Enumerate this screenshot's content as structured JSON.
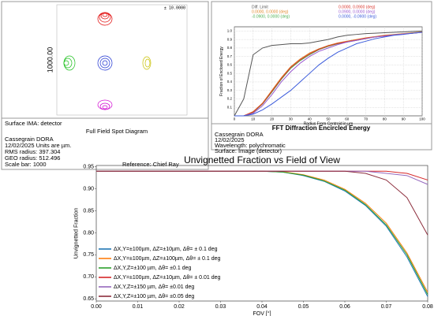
{
  "spot_diagram": {
    "scale_label": "± 10.0000",
    "axis_label": "1000.00",
    "surface": "Surface IMA: detector",
    "title": "Full Field Spot Diagram",
    "lines": [
      "Cassegrain DORA",
      "12/02/2025    Units are µm.",
      "RMS radius:  397.304",
      "GEO radius:  512.496",
      "Scale bar: 1000"
    ],
    "reference": "Reference: Chief Ray"
  },
  "encircled_energy_info": {
    "lines": [
      "Cassegrain DORA",
      "12/02/2025",
      "Wavelength: polychromatic",
      "Surface: Image (detector)"
    ]
  },
  "chart_data": [
    {
      "type": "line",
      "title": "FFT Diffraction Encircled Energy",
      "x_label": "Radius From Centroid in µm",
      "y_label": "Fraction of Enclosed Energy",
      "x": [
        0,
        5,
        10,
        15,
        20,
        25,
        30,
        35,
        40,
        45,
        50,
        55,
        60,
        65,
        70,
        75,
        80,
        85,
        90,
        95,
        100
      ],
      "xlim": [
        0,
        100
      ],
      "xticks": [
        0,
        10,
        20,
        30,
        40,
        50,
        60,
        70,
        80,
        90,
        100
      ],
      "ylim": [
        0,
        1.05
      ],
      "yticks": [
        {
          "value": 0.1,
          "label": "0.1"
        },
        {
          "value": 0.2,
          "label": "0.2"
        },
        {
          "value": 0.3,
          "label": "0.3"
        },
        {
          "value": 0.4,
          "label": "0.4"
        },
        {
          "value": 0.5,
          "label": "0.5"
        },
        {
          "value": 0.6,
          "label": "0.6"
        },
        {
          "value": 0.7,
          "label": "0.7"
        },
        {
          "value": 0.8,
          "label": "0.8"
        },
        {
          "value": 0.9,
          "label": "0.9"
        },
        {
          "value": 1.0,
          "label": "1.0"
        }
      ],
      "grid": true,
      "legend": "top",
      "series": [
        {
          "name": "Diff. Limit",
          "color": "#555555",
          "values": [
            0,
            0.2,
            0.72,
            0.8,
            0.83,
            0.84,
            0.85,
            0.85,
            0.86,
            0.88,
            0.9,
            0.93,
            0.95,
            0.96,
            0.97,
            0.975,
            0.98,
            0.985,
            0.99,
            0.995,
            1.0
          ]
        },
        {
          "name": "0.0000, 0.0000 (deg)",
          "color": "#e08a2c",
          "values": [
            0,
            0,
            0.05,
            0.15,
            0.3,
            0.45,
            0.58,
            0.67,
            0.74,
            0.79,
            0.83,
            0.86,
            0.88,
            0.9,
            0.92,
            0.935,
            0.95,
            0.96,
            0.97,
            0.98,
            0.99
          ]
        },
        {
          "name": "-0.0900, 0.0000 (deg)",
          "color": "#4caf50",
          "values": [
            0,
            0,
            0.04,
            0.14,
            0.28,
            0.43,
            0.56,
            0.65,
            0.72,
            0.78,
            0.82,
            0.85,
            0.87,
            0.89,
            0.91,
            0.93,
            0.945,
            0.955,
            0.965,
            0.975,
            0.985
          ]
        },
        {
          "name": "0.0000, 0.0900 (deg)",
          "color": "#d9342b",
          "values": [
            0,
            0,
            0.045,
            0.145,
            0.29,
            0.44,
            0.57,
            0.66,
            0.73,
            0.785,
            0.825,
            0.855,
            0.875,
            0.895,
            0.915,
            0.93,
            0.945,
            0.955,
            0.965,
            0.975,
            0.985
          ]
        },
        {
          "name": "0.0900, 0.0000 (deg)",
          "color": "#9b59d0",
          "values": [
            0,
            0,
            0.03,
            0.12,
            0.25,
            0.4,
            0.52,
            0.62,
            0.7,
            0.76,
            0.8,
            0.84,
            0.87,
            0.89,
            0.91,
            0.93,
            0.94,
            0.955,
            0.965,
            0.975,
            0.985
          ]
        },
        {
          "name": "0.0000, -0.0900 (deg)",
          "color": "#3b5bdb",
          "values": [
            0,
            0,
            0.02,
            0.07,
            0.14,
            0.22,
            0.3,
            0.4,
            0.5,
            0.6,
            0.68,
            0.75,
            0.8,
            0.85,
            0.88,
            0.91,
            0.93,
            0.95,
            0.96,
            0.975,
            0.985
          ]
        }
      ]
    },
    {
      "type": "line",
      "title": "Unvignetted Fraction vs Field of View",
      "x_label": "FOV [°]",
      "y_label": "Unvignetted Fraction",
      "x": [
        0,
        0.005,
        0.01,
        0.015,
        0.02,
        0.025,
        0.03,
        0.035,
        0.04,
        0.045,
        0.05,
        0.055,
        0.06,
        0.065,
        0.07,
        0.075,
        0.08
      ],
      "xlim": [
        0,
        0.08
      ],
      "xticks": [
        {
          "value": 0,
          "label": "0.00"
        },
        {
          "value": 0.01,
          "label": "0.01"
        },
        {
          "value": 0.02,
          "label": "0.02"
        },
        {
          "value": 0.03,
          "label": "0.03"
        },
        {
          "value": 0.04,
          "label": "0.04"
        },
        {
          "value": 0.05,
          "label": "0.05"
        },
        {
          "value": 0.06,
          "label": "0.06"
        },
        {
          "value": 0.07,
          "label": "0.07"
        },
        {
          "value": 0.08,
          "label": "0.08"
        }
      ],
      "ylim": [
        0.645,
        0.953
      ],
      "yticks": [
        {
          "value": 0.65,
          "label": "0.65"
        },
        {
          "value": 0.7,
          "label": "0.70"
        },
        {
          "value": 0.75,
          "label": "0.75"
        },
        {
          "value": 0.8,
          "label": "0.80"
        },
        {
          "value": 0.85,
          "label": "0.85"
        },
        {
          "value": 0.9,
          "label": "0.90"
        },
        {
          "value": 0.95,
          "label": "0.95"
        }
      ],
      "grid": false,
      "legend": "lower left",
      "series": [
        {
          "name": "ΔX,Y=±100µm, ΔZ=±10µm, Δθ= ± 0.1 deg",
          "color": "#1f77b4",
          "values": [
            0.94,
            0.94,
            0.94,
            0.94,
            0.94,
            0.94,
            0.94,
            0.94,
            0.94,
            0.938,
            0.93,
            0.917,
            0.895,
            0.862,
            0.815,
            0.745,
            0.655
          ]
        },
        {
          "name": "ΔX,Y=±100µm, ΔZ=±100µm, Δθ= ± 0.1 deg",
          "color": "#ff7f0e",
          "values": [
            0.94,
            0.94,
            0.94,
            0.94,
            0.94,
            0.94,
            0.94,
            0.94,
            0.94,
            0.939,
            0.932,
            0.92,
            0.899,
            0.867,
            0.822,
            0.754,
            0.665
          ]
        },
        {
          "name": "ΔX,Y,Z=±100 µm, Δθ= ±0.1 deg",
          "color": "#2ca02c",
          "values": [
            0.94,
            0.94,
            0.94,
            0.94,
            0.94,
            0.94,
            0.94,
            0.94,
            0.94,
            0.938,
            0.931,
            0.918,
            0.897,
            0.864,
            0.818,
            0.75,
            0.66
          ]
        },
        {
          "name": "ΔX,Y=±100µm, ΔZ=±10µm, Δθ= ± 0.01 deg",
          "color": "#d62728",
          "values": [
            0.94,
            0.94,
            0.94,
            0.94,
            0.94,
            0.94,
            0.94,
            0.94,
            0.94,
            0.94,
            0.94,
            0.94,
            0.94,
            0.94,
            0.94,
            0.935,
            0.92
          ]
        },
        {
          "name": "ΔX,Y,Z=±150 µm, Δθ= ±0.01 deg",
          "color": "#9467bd",
          "values": [
            0.94,
            0.94,
            0.94,
            0.94,
            0.94,
            0.94,
            0.94,
            0.94,
            0.94,
            0.94,
            0.94,
            0.94,
            0.94,
            0.94,
            0.935,
            0.93,
            0.91
          ]
        },
        {
          "name": "ΔX,Y,Z=±100 µm, Δθ= ±0.05 deg",
          "color": "#8c2d3c",
          "values": [
            0.94,
            0.94,
            0.94,
            0.94,
            0.94,
            0.94,
            0.94,
            0.94,
            0.94,
            0.94,
            0.94,
            0.94,
            0.94,
            0.935,
            0.92,
            0.88,
            0.795
          ]
        }
      ]
    }
  ]
}
